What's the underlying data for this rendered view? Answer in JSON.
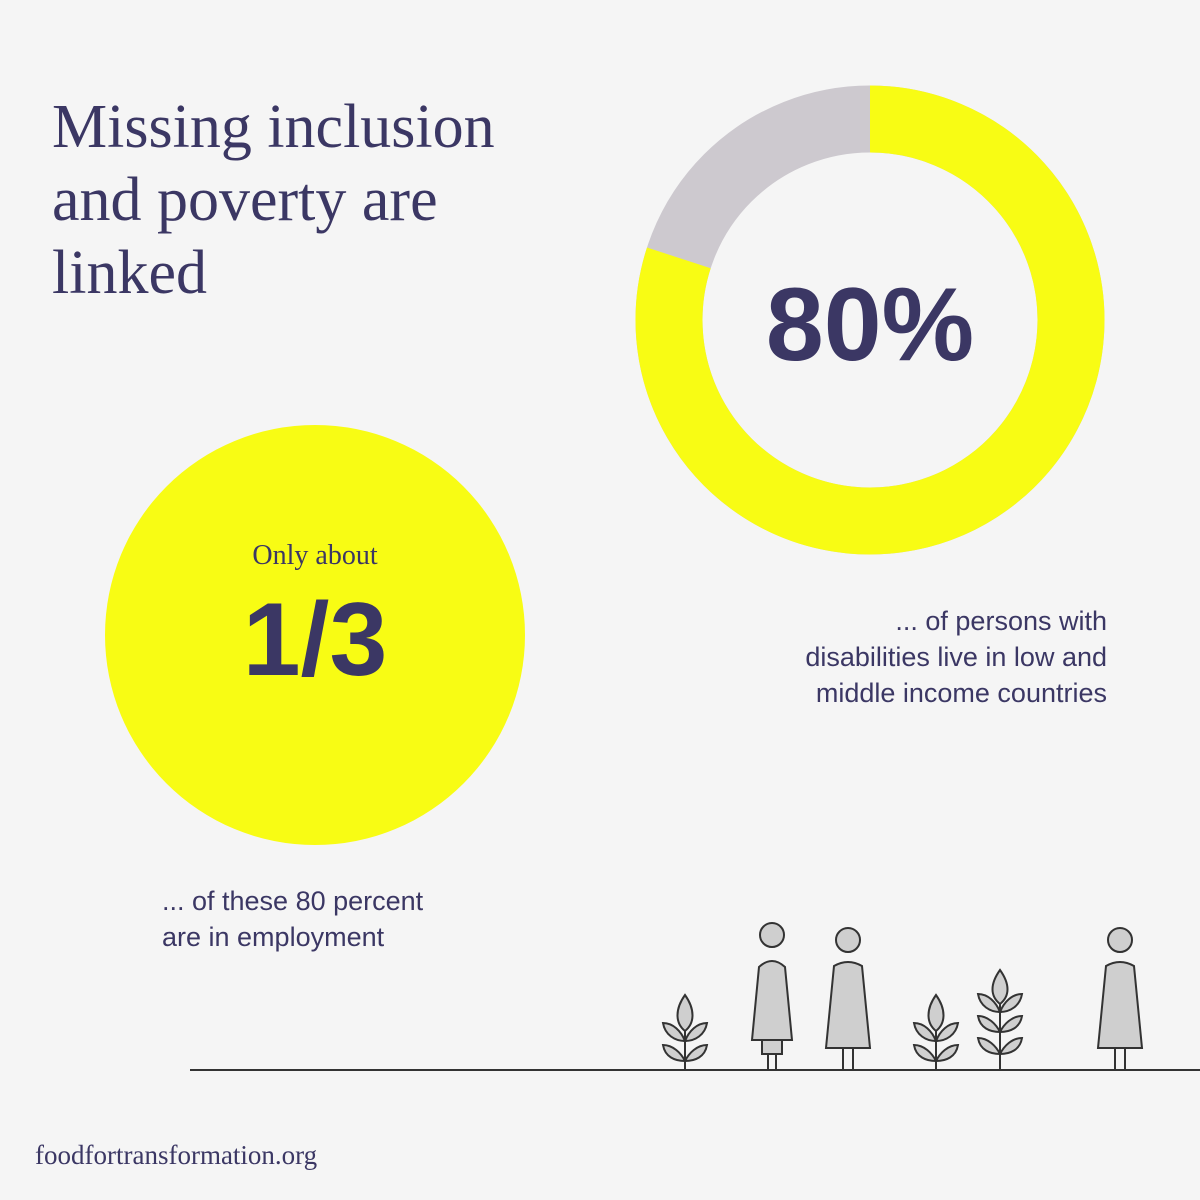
{
  "title_lines": [
    "Missing inclusion",
    "and poverty are",
    "linked"
  ],
  "chart_data": {
    "type": "donut",
    "values": [
      80
    ],
    "value_labels": [
      "80%"
    ],
    "color": "#f8fc14",
    "rest_color": "#cdc9cf"
  },
  "donut_caption": [
    "... of persons with",
    "disabilities live in low and",
    "middle income countries"
  ],
  "circle": {
    "lead": "Only about",
    "figure": "1/3"
  },
  "circle_caption": [
    "... of these 80 percent",
    "are in employment"
  ],
  "footer": "foodfortransformation.org"
}
